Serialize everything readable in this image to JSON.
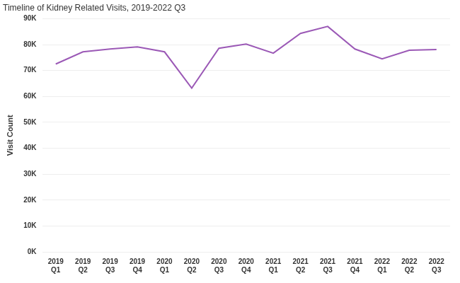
{
  "chart_data": {
    "type": "line",
    "title": "Timeline of Kidney Related Visits, 2019-2022 Q3",
    "y_label": "Visit Count",
    "categories": [
      "2019 Q1",
      "2019 Q2",
      "2019 Q3",
      "2019 Q4",
      "2020 Q1",
      "2020 Q2",
      "2020 Q3",
      "2020 Q4",
      "2021 Q1",
      "2021 Q2",
      "2021 Q3",
      "2021 Q4",
      "2022 Q1",
      "2022 Q2",
      "2022 Q3"
    ],
    "values": [
      72500,
      77200,
      78300,
      79100,
      77200,
      63200,
      78600,
      80200,
      76700,
      84300,
      87000,
      78300,
      74500,
      77800,
      78100
    ],
    "color": "#9b59b6",
    "ylim": [
      0,
      90000
    ],
    "yticks": [
      {
        "value": 0,
        "label": "0K"
      },
      {
        "value": 10000,
        "label": "10K"
      },
      {
        "value": 20000,
        "label": "20K"
      },
      {
        "value": 30000,
        "label": "30K"
      },
      {
        "value": 40000,
        "label": "40K"
      },
      {
        "value": 50000,
        "label": "50K"
      },
      {
        "value": 60000,
        "label": "60K"
      },
      {
        "value": 70000,
        "label": "70K"
      },
      {
        "value": 80000,
        "label": "80K"
      },
      {
        "value": 90000,
        "label": "90K"
      }
    ],
    "grid": true
  }
}
